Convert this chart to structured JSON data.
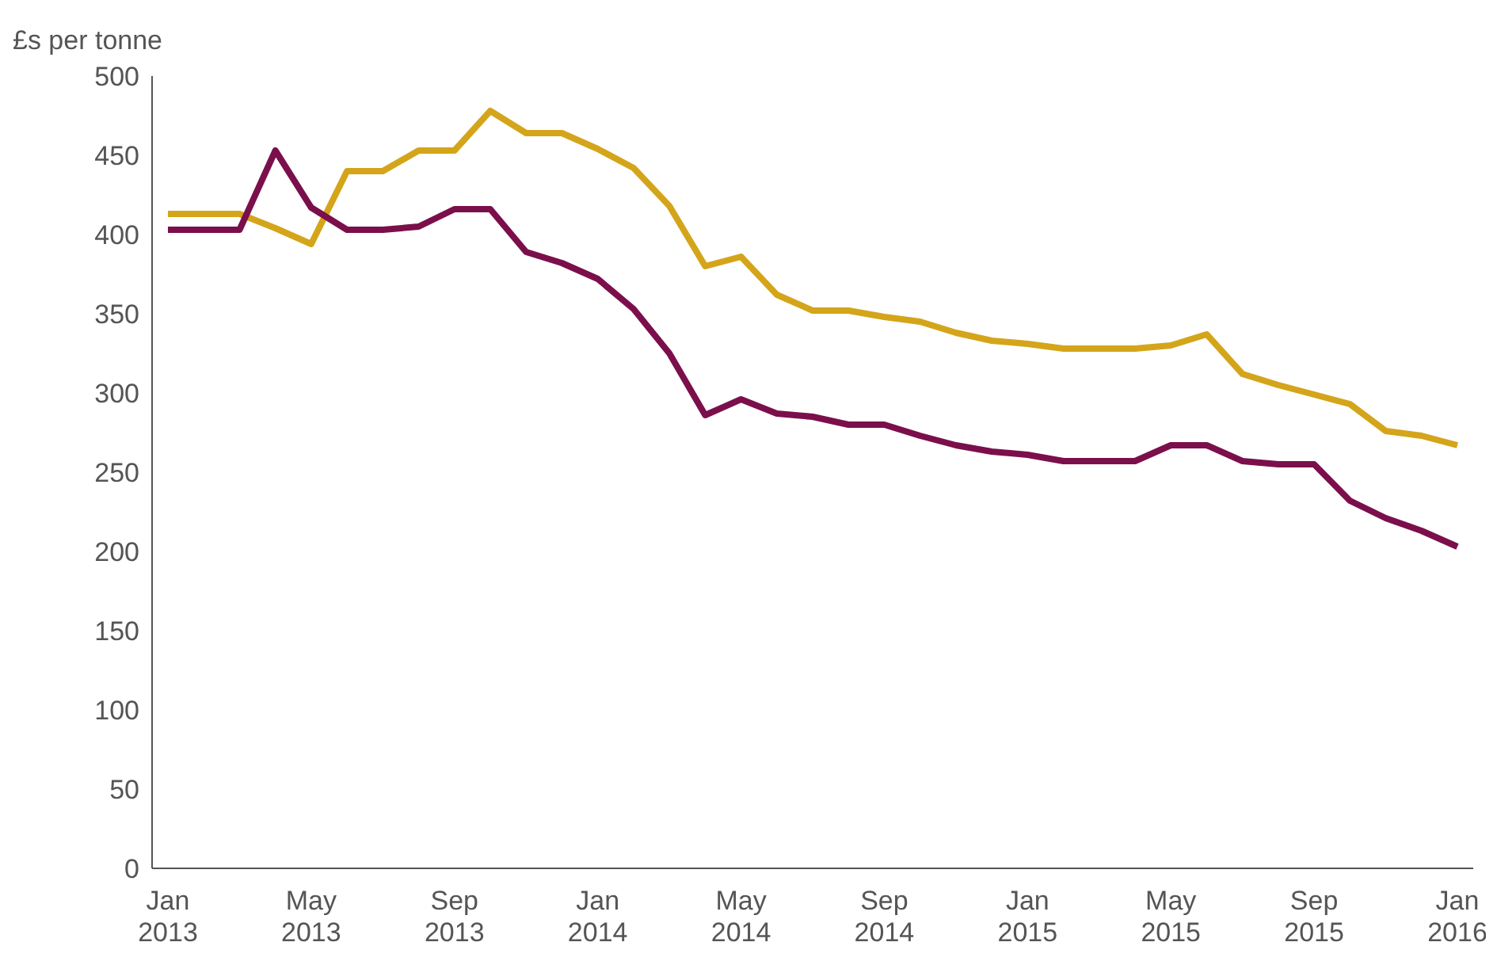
{
  "chart_data": {
    "type": "line",
    "ylabel": "£s per tonne",
    "categories": [
      "Jan 2013",
      null,
      null,
      null,
      "May 2013",
      null,
      null,
      null,
      "Sep 2013",
      null,
      null,
      null,
      "Jan 2014",
      null,
      null,
      null,
      "May 2014",
      null,
      null,
      null,
      "Sep 2014",
      null,
      null,
      null,
      "Jan 2015",
      null,
      null,
      null,
      "May 2015",
      null,
      null,
      null,
      "Sep 2015",
      null,
      null,
      null,
      "Jan 2016"
    ],
    "series": [
      {
        "color": "#d4a51a",
        "values": [
          413,
          413,
          413,
          404,
          394,
          440,
          440,
          453,
          453,
          478,
          464,
          464,
          454,
          442,
          418,
          380,
          386,
          362,
          352,
          352,
          348,
          345,
          338,
          333,
          331,
          328,
          328,
          328,
          330,
          337,
          312,
          305,
          299,
          293,
          276,
          273,
          267
        ]
      },
      {
        "color": "#7b0f4b",
        "values": [
          403,
          403,
          403,
          453,
          417,
          403,
          403,
          405,
          416,
          416,
          389,
          382,
          372,
          353,
          325,
          286,
          296,
          287,
          285,
          280,
          280,
          273,
          267,
          263,
          261,
          257,
          257,
          257,
          267,
          267,
          257,
          255,
          255,
          232,
          221,
          213,
          203
        ]
      }
    ],
    "ylim": [
      0,
      500
    ],
    "yticks": [
      0,
      50,
      100,
      150,
      200,
      250,
      300,
      350,
      400,
      450,
      500
    ],
    "grid": false,
    "legend": false
  }
}
